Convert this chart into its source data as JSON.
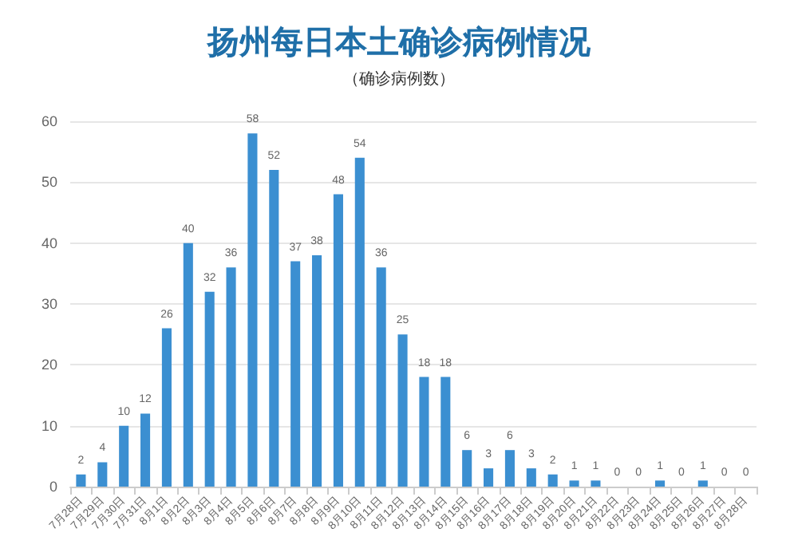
{
  "chart_data": {
    "type": "bar",
    "title": "扬州每日本土确诊病例情况",
    "subtitle": "（确诊病例数）",
    "categories": [
      "7月28日",
      "7月29日",
      "7月30日",
      "7月31日",
      "8月1日",
      "8月2日",
      "8月3日",
      "8月4日",
      "8月5日",
      "8月6日",
      "8月7日",
      "8月8日",
      "8月9日",
      "8月10日",
      "8月11日",
      "8月12日",
      "8月13日",
      "8月14日",
      "8月15日",
      "8月16日",
      "8月17日",
      "8月18日",
      "8月19日",
      "8月20日",
      "8月21日",
      "8月22日",
      "8月23日",
      "8月24日",
      "8月25日",
      "8月26日",
      "8月27日",
      "8月28日"
    ],
    "values": [
      2,
      4,
      10,
      12,
      26,
      40,
      32,
      36,
      58,
      52,
      37,
      38,
      48,
      54,
      36,
      25,
      18,
      18,
      6,
      3,
      6,
      3,
      2,
      1,
      1,
      0,
      0,
      1,
      0,
      1,
      0,
      0
    ],
    "color": "#3b8fd1",
    "ylim": [
      0,
      60
    ],
    "yticks": [
      0,
      10,
      20,
      30,
      40,
      50,
      60
    ],
    "grid": "y",
    "data_labels": true
  }
}
